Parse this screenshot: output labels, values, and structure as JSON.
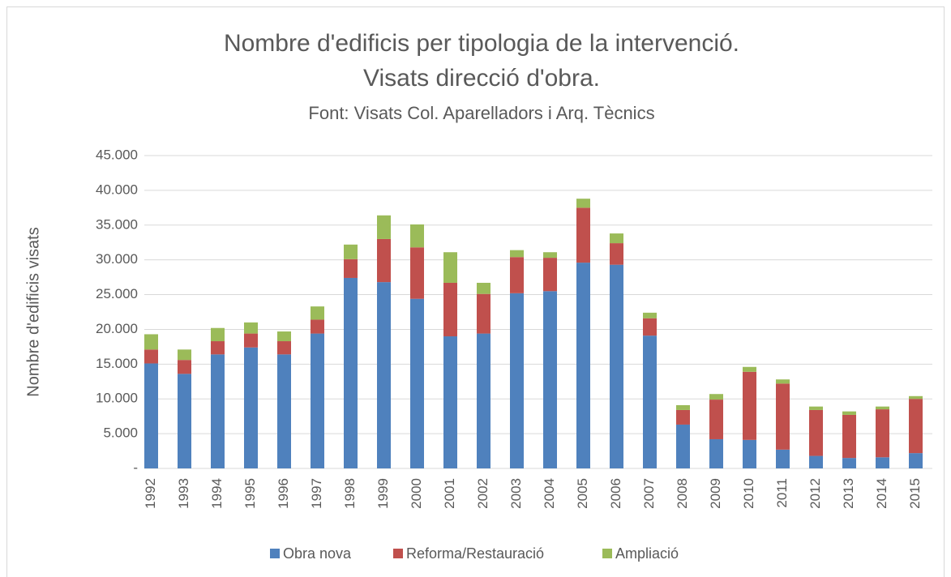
{
  "chart_data": {
    "type": "stacked_bar",
    "title": [
      "Nombre d'edificis per tipologia de la intervenció.",
      "Visats direcció d'obra."
    ],
    "subtitle": "Font: Visats Col. Aparelladors i Arq. Tècnics",
    "y_label": "Nombre d'edificis visats",
    "categories": [
      "1992",
      "1993",
      "1994",
      "1995",
      "1996",
      "1997",
      "1998",
      "1999",
      "2000",
      "2001",
      "2002",
      "2003",
      "2004",
      "2005",
      "2006",
      "2007",
      "2008",
      "2009",
      "2010",
      "2011",
      "2012",
      "2013",
      "2014",
      "2015"
    ],
    "series": [
      {
        "name": "Obra nova",
        "color": "#4f81bd",
        "values": [
          15100,
          13600,
          16400,
          17400,
          16400,
          19400,
          27400,
          26800,
          24400,
          19000,
          19400,
          25200,
          25500,
          29600,
          29300,
          19100,
          6300,
          4200,
          4100,
          2700,
          1800,
          1500,
          1600,
          2200
        ]
      },
      {
        "name": "Reforma/Restauració",
        "color": "#c0504d",
        "values": [
          2000,
          2000,
          1900,
          2000,
          1900,
          2000,
          2700,
          6200,
          7400,
          7700,
          5700,
          5200,
          4800,
          7900,
          3100,
          2500,
          2100,
          5700,
          9800,
          9500,
          6600,
          6200,
          6900,
          7800
        ]
      },
      {
        "name": "Ampliació",
        "color": "#9bbb59",
        "values": [
          2200,
          1500,
          1900,
          1600,
          1400,
          1900,
          2100,
          3400,
          3300,
          4400,
          1600,
          1000,
          800,
          1300,
          1400,
          800,
          700,
          800,
          700,
          600,
          500,
          500,
          400,
          400
        ]
      }
    ],
    "ylim": [
      0,
      45000
    ],
    "yticks": [
      {
        "value": 0,
        "label": "-"
      },
      {
        "value": 5000,
        "label": "5.000"
      },
      {
        "value": 10000,
        "label": "10.000"
      },
      {
        "value": 15000,
        "label": "15.000"
      },
      {
        "value": 20000,
        "label": "20.000"
      },
      {
        "value": 25000,
        "label": "25.000"
      },
      {
        "value": 30000,
        "label": "30.000"
      },
      {
        "value": 35000,
        "label": "35.000"
      },
      {
        "value": 40000,
        "label": "40.000"
      },
      {
        "value": 45000,
        "label": "45.000"
      }
    ],
    "grid": true,
    "legend": "bottom"
  }
}
